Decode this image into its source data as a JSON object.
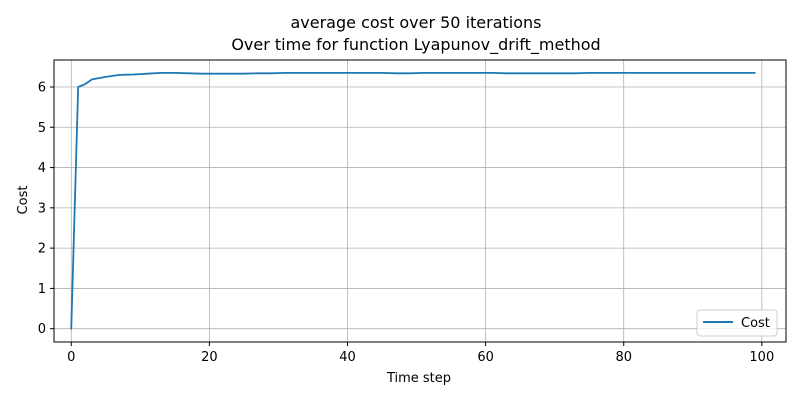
{
  "chart_data": {
    "type": "line",
    "title": "average cost over 50 iterations",
    "subtitle": "Over time for function Lyapunov_drift_method",
    "xlabel": "Time step",
    "ylabel": "Cost",
    "xlim": [
      -2.5,
      103.5
    ],
    "ylim": [
      -0.33,
      6.67
    ],
    "xticks": [
      0,
      20,
      40,
      60,
      80,
      100
    ],
    "yticks": [
      0,
      1,
      2,
      3,
      4,
      5,
      6
    ],
    "xtick_labels": [
      "0",
      "20",
      "40",
      "60",
      "80",
      "100"
    ],
    "ytick_labels": [
      "0",
      "1",
      "2",
      "3",
      "4",
      "5",
      "6"
    ],
    "grid": true,
    "legend_position": "lower-right",
    "line_color": "#1f77b4",
    "series": [
      {
        "name": "Cost",
        "x": [
          0,
          1,
          2,
          3,
          5,
          7,
          9,
          11,
          13,
          15,
          17,
          19,
          21,
          23,
          25,
          27,
          29,
          31,
          33,
          35,
          37,
          39,
          41,
          43,
          45,
          47,
          49,
          51,
          53,
          55,
          57,
          59,
          61,
          63,
          65,
          67,
          69,
          71,
          73,
          75,
          77,
          79,
          81,
          83,
          85,
          87,
          89,
          91,
          93,
          95,
          97,
          99
        ],
        "y": [
          0.0,
          6.0,
          6.07,
          6.19,
          6.25,
          6.3,
          6.31,
          6.33,
          6.35,
          6.35,
          6.34,
          6.33,
          6.33,
          6.33,
          6.33,
          6.34,
          6.34,
          6.35,
          6.35,
          6.35,
          6.35,
          6.35,
          6.35,
          6.35,
          6.35,
          6.34,
          6.34,
          6.35,
          6.35,
          6.35,
          6.35,
          6.35,
          6.35,
          6.34,
          6.34,
          6.34,
          6.34,
          6.34,
          6.34,
          6.35,
          6.35,
          6.35,
          6.35,
          6.35,
          6.35,
          6.35,
          6.35,
          6.35,
          6.35,
          6.35,
          6.35,
          6.35
        ]
      }
    ]
  }
}
